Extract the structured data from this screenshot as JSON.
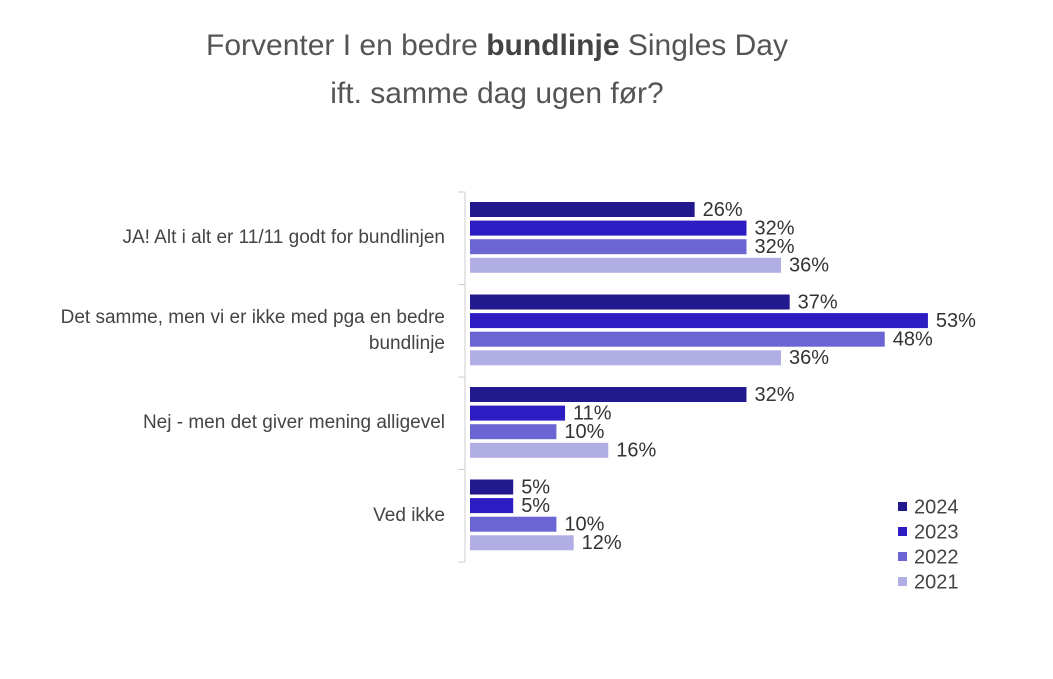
{
  "chart_data": {
    "type": "hbar",
    "title_parts": [
      "Forventer I en bedre",
      "bundlinje",
      "Singles Day",
      "ift. samme dag ugen før?"
    ],
    "categories": [
      "JA! Alt i alt er 11/11 godt for bundlinjen",
      "Det samme, men vi er ikke med pga en bedre bundlinje",
      "Nej - men det giver mening alligevel",
      "Ved ikke"
    ],
    "series": [
      {
        "name": "2024",
        "color": "#23198f",
        "values": [
          26,
          37,
          32,
          5
        ],
        "value_labels": [
          "26%",
          "37%",
          "32%",
          "5%"
        ]
      },
      {
        "name": "2023",
        "color": "#2c1cc2",
        "values": [
          32,
          53,
          11,
          5
        ],
        "value_labels": [
          "32%",
          "53%",
          "11%",
          "5%"
        ]
      },
      {
        "name": "2022",
        "color": "#6b65d4",
        "values": [
          32,
          48,
          10,
          10
        ],
        "value_labels": [
          "32%",
          "48%",
          "10%",
          "10%"
        ]
      },
      {
        "name": "2021",
        "color": "#b1aee6",
        "values": [
          36,
          36,
          16,
          12
        ],
        "value_labels": [
          "36%",
          "36%",
          "16%",
          "12%"
        ]
      }
    ],
    "legend": "bottom-right"
  }
}
